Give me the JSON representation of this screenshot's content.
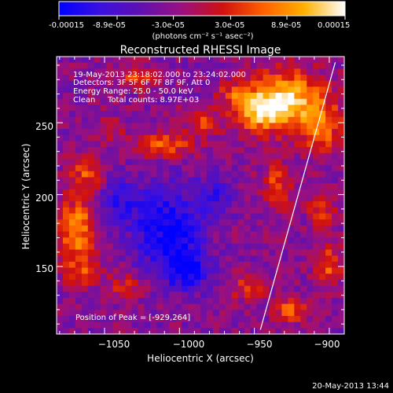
{
  "colorbar": {
    "tick_labels": [
      "-0.00015",
      "-8.9e-05",
      "-3.0e-05",
      "3.0e-05",
      "8.9e-05",
      "0.00015"
    ],
    "tick_values": [
      -0.00015,
      -8.9e-05,
      -3e-05,
      3e-05,
      8.9e-05,
      0.00015
    ],
    "range": [
      -0.00015,
      0.00015
    ],
    "units_label": "(photons cm⁻² s⁻¹ asec⁻²)",
    "colors": [
      "#0000ff",
      "#3a10e0",
      "#6010b0",
      "#9a1080",
      "#d01010",
      "#ff6000",
      "#ffb000",
      "#ffffff"
    ]
  },
  "chart_data": {
    "type": "heatmap",
    "title": "Reconstructed RHESSI Image",
    "xlabel": "Heliocentric X (arcsec)",
    "ylabel": "Heliocentric Y (arcsec)",
    "xlim": [
      -1082,
      -890
    ],
    "ylim": [
      103,
      296
    ],
    "x_ticks": [
      -1050,
      -1000,
      -950,
      -900
    ],
    "y_ticks": [
      150,
      200,
      250
    ],
    "x_tick_labels": [
      "−1050",
      "−1000",
      "−950",
      "−900"
    ],
    "y_tick_labels": [
      "150",
      "200",
      "250"
    ],
    "annotations": {
      "time_range": "19-May-2013 23:18:02.000 to 23:24:02.000",
      "detectors": "Detectors: 3F 5F 6F 7F 8F 9F, Att 0",
      "energy_range": "Energy Range: 25.0 - 50.0 keV",
      "clean_label": "Clean",
      "total_counts": "Total counts: 8.97E+03",
      "peak_position": "Position of Peak = [-929,264]"
    },
    "limb_line": {
      "x": [
        -946,
        -896
      ],
      "y": [
        106,
        292
      ]
    },
    "peak": {
      "x": -929,
      "y": 264
    },
    "blobs": [
      {
        "x": -928,
        "y": 266,
        "sx": 18,
        "sy": 14,
        "a": 0.00015
      },
      {
        "x": -946,
        "y": 258,
        "sx": 12,
        "sy": 10,
        "a": 0.00011
      },
      {
        "x": -905,
        "y": 245,
        "sx": 10,
        "sy": 12,
        "a": 9e-05
      },
      {
        "x": -1068,
        "y": 175,
        "sx": 9,
        "sy": 16,
        "a": 0.00012
      },
      {
        "x": -1062,
        "y": 215,
        "sx": 8,
        "sy": 10,
        "a": 8e-05
      },
      {
        "x": -1010,
        "y": 234,
        "sx": 14,
        "sy": 6,
        "a": 9e-05
      },
      {
        "x": -985,
        "y": 250,
        "sx": 8,
        "sy": 6,
        "a": 7e-05
      },
      {
        "x": -1030,
        "y": 282,
        "sx": 10,
        "sy": 6,
        "a": 7e-05
      },
      {
        "x": -935,
        "y": 205,
        "sx": 7,
        "sy": 12,
        "a": 8e-05
      },
      {
        "x": -905,
        "y": 190,
        "sx": 6,
        "sy": 8,
        "a": 8e-05
      },
      {
        "x": -900,
        "y": 150,
        "sx": 6,
        "sy": 10,
        "a": 9e-05
      },
      {
        "x": -925,
        "y": 120,
        "sx": 8,
        "sy": 6,
        "a": 9e-05
      },
      {
        "x": -955,
        "y": 135,
        "sx": 8,
        "sy": 6,
        "a": 7e-05
      },
      {
        "x": -1035,
        "y": 137,
        "sx": 10,
        "sy": 6,
        "a": 6e-05
      },
      {
        "x": -1065,
        "y": 145,
        "sx": 8,
        "sy": 6,
        "a": 7e-05
      },
      {
        "x": -965,
        "y": 270,
        "sx": 7,
        "sy": 6,
        "a": 6e-05
      },
      {
        "x": -1045,
        "y": 245,
        "sx": 6,
        "sy": 6,
        "a": 5e-05
      },
      {
        "x": -1008,
        "y": 175,
        "sx": 16,
        "sy": 22,
        "a": -0.00011
      },
      {
        "x": -995,
        "y": 148,
        "sx": 10,
        "sy": 10,
        "a": -0.0001
      },
      {
        "x": -1040,
        "y": 195,
        "sx": 10,
        "sy": 12,
        "a": -7e-05
      },
      {
        "x": -975,
        "y": 200,
        "sx": 8,
        "sy": 10,
        "a": -6e-05
      }
    ]
  },
  "footer": {
    "timestamp": "20-May-2013 13:44"
  }
}
